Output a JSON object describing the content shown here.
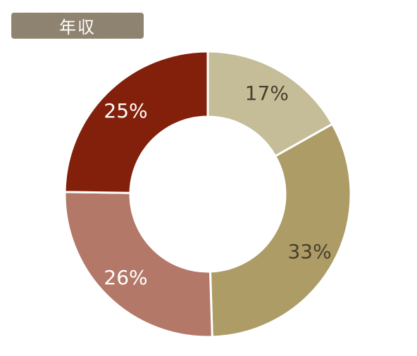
{
  "header": {
    "title": "年収"
  },
  "chart_data": {
    "type": "pie",
    "style": "donut",
    "title": "年収",
    "start_direction": "clockwise from top",
    "slices": [
      {
        "label": "17%",
        "value": 17,
        "color": "#c5bc98",
        "label_color": "#4a3f2e"
      },
      {
        "label": "33%",
        "value": 33,
        "color": "#ad9c66",
        "label_color": "#4a3f2e"
      },
      {
        "label": "26%",
        "value": 26,
        "color": "#b37868",
        "label_color": "#ffffff"
      },
      {
        "label": "25%",
        "value": 25,
        "color": "#83200c",
        "label_color": "#ffffff"
      }
    ]
  },
  "colors": {
    "badge_background": "#8f8370",
    "badge_text": "#ffffff",
    "separator": "#ffffff"
  }
}
